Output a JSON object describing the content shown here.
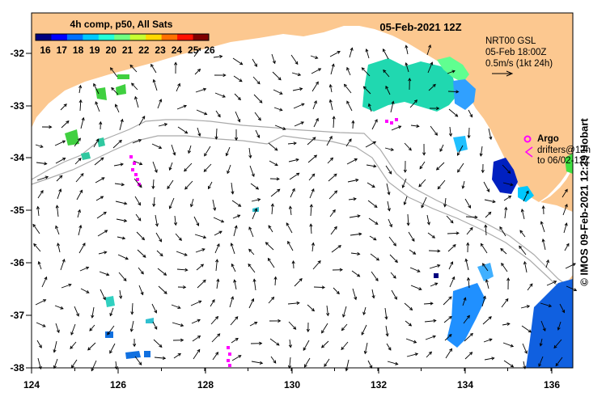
{
  "map": {
    "date_title": "05-Feb-2021 12Z",
    "colorbar": {
      "title": "4h comp, p50, All Sats",
      "ticks": [
        "16",
        "17",
        "18",
        "19",
        "20",
        "21",
        "22",
        "23",
        "24",
        "25",
        "26"
      ],
      "colors": [
        "#00007f",
        "#0000ff",
        "#0070ff",
        "#00c8ff",
        "#20ffd8",
        "#70ff80",
        "#c8ff30",
        "#ffd800",
        "#ff7000",
        "#ff1000",
        "#7f0000"
      ]
    },
    "current_legend": {
      "line1": "NRT00 GSL",
      "line2": "05-Feb 18:00Z",
      "line3": "0.5m/s (1kt 24h)"
    },
    "argo_legend": {
      "argo_label": "Argo",
      "drifters_line1": "drifters@12h",
      "drifters_line2": "to 06/02-12Z"
    },
    "credit": "© IMOS 09-Feb-2021 12:29 Hobart",
    "x_ticks": [
      "124",
      "126",
      "128",
      "130",
      "132",
      "134",
      "136"
    ],
    "y_ticks": [
      "-32",
      "-33",
      "-34",
      "-35",
      "-36",
      "-37",
      "-38"
    ],
    "colors": {
      "land": "#fcc890",
      "ocean": "#ffffff",
      "bathymetry": "#aaaaaa",
      "argo": "#ff00ff",
      "arrow": "#000000"
    }
  }
}
